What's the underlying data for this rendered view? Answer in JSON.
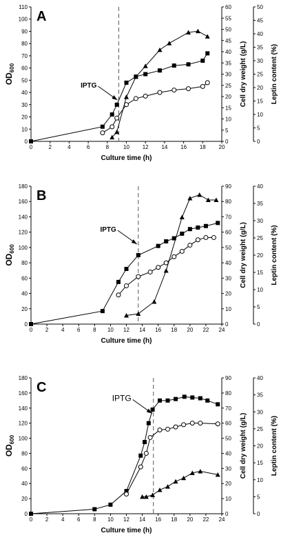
{
  "chart_data": [
    {
      "type": "line",
      "label": "A",
      "xlabel": "Culture time (h)",
      "ylabel": "OD",
      "ylabel_subscript": "600",
      "y2label": "Cell dry weight (g/L)",
      "y3label": "Leptin content (%)",
      "annotation": "IPTG",
      "iptg_x": 9.2,
      "xlim": [
        0,
        20
      ],
      "xticks": [
        0,
        2,
        4,
        6,
        8,
        10,
        12,
        14,
        16,
        18,
        20
      ],
      "ylim": [
        0,
        110
      ],
      "yticks": [
        0,
        10,
        20,
        30,
        40,
        50,
        60,
        70,
        80,
        90,
        100,
        110
      ],
      "y2lim": [
        0,
        60
      ],
      "y2ticks": [
        0,
        5,
        10,
        15,
        20,
        25,
        30,
        35,
        40,
        45,
        50,
        55,
        60
      ],
      "y3lim": [
        0,
        50
      ],
      "y3ticks": [
        0,
        5,
        10,
        15,
        20,
        25,
        30,
        35,
        40,
        45,
        50
      ],
      "series": [
        {
          "marker": "square",
          "color": "#000000",
          "axis": "y",
          "x": [
            0,
            7.5,
            8.5,
            9,
            10,
            11,
            12,
            13.5,
            15,
            16.5,
            18,
            18.5
          ],
          "values": [
            0,
            12,
            22,
            30,
            48,
            53,
            55,
            58,
            62,
            63,
            66,
            72
          ]
        },
        {
          "marker": "circle",
          "color": "#000000",
          "axis": "y2",
          "x": [
            7.5,
            8.5,
            9,
            10,
            11,
            12,
            13.5,
            15,
            16.5,
            18,
            18.5
          ],
          "values": [
            3.8,
            6.5,
            10.4,
            16.4,
            19.1,
            20.2,
            21.8,
            22.9,
            23.5,
            24.5,
            26.2
          ]
        },
        {
          "marker": "triangle",
          "color": "#000000",
          "axis": "y3",
          "x": [
            8.5,
            9,
            10,
            11,
            12,
            13.5,
            14.5,
            16.5,
            17.5,
            18.5
          ],
          "values": [
            1.5,
            3.5,
            16.5,
            24,
            28,
            34,
            36.5,
            40.5,
            41,
            39
          ]
        }
      ]
    },
    {
      "type": "line",
      "label": "B",
      "xlabel": "Culture time (h)",
      "ylabel": "OD",
      "ylabel_subscript": "600",
      "y2label": "Cell dry weight (g/L)",
      "y3label": "Leptin content (%)",
      "annotation": "IPTG",
      "iptg_x": 13.5,
      "xlim": [
        0,
        24
      ],
      "xticks": [
        0,
        2,
        4,
        6,
        8,
        10,
        12,
        14,
        16,
        18,
        20,
        22,
        24
      ],
      "ylim": [
        0,
        180
      ],
      "yticks": [
        0,
        20,
        40,
        60,
        80,
        100,
        120,
        140,
        160,
        180
      ],
      "y2lim": [
        0,
        90
      ],
      "y2ticks": [
        0,
        10,
        20,
        30,
        40,
        50,
        60,
        70,
        80,
        90
      ],
      "y3lim": [
        0,
        40
      ],
      "y3ticks": [
        0,
        5,
        10,
        15,
        20,
        25,
        30,
        35,
        40
      ],
      "series": [
        {
          "marker": "square",
          "color": "#000000",
          "axis": "y",
          "x": [
            0,
            9,
            11,
            12,
            13.5,
            16,
            17,
            18,
            19,
            20,
            21,
            22,
            23.5
          ],
          "values": [
            0,
            17,
            55,
            72,
            90,
            102,
            108,
            112,
            118,
            124,
            126,
            128,
            132
          ]
        },
        {
          "marker": "circle",
          "color": "#000000",
          "axis": "y2",
          "x": [
            11,
            12,
            13.5,
            15,
            16,
            17,
            18,
            19,
            20,
            21,
            22,
            23
          ],
          "values": [
            19,
            25,
            31,
            34,
            37,
            40,
            44,
            47.5,
            51.5,
            55,
            56.5,
            56.5
          ]
        },
        {
          "marker": "triangle",
          "color": "#000000",
          "axis": "y3",
          "x": [
            12,
            13.5,
            15.5,
            17,
            19,
            20,
            21.2,
            22.3,
            23.3
          ],
          "values": [
            2.5,
            3,
            6.5,
            15.5,
            31,
            36.5,
            37.5,
            36,
            36
          ]
        }
      ]
    },
    {
      "type": "line",
      "label": "C",
      "xlabel": "Culture time (h)",
      "ylabel": "OD",
      "ylabel_subscript": "600",
      "y2label": "Cell dry weight (g/L)",
      "y3label": "Leptin content (%)",
      "annotation": "IPTG",
      "iptg_x": 15.4,
      "xlim": [
        0,
        24
      ],
      "xticks": [
        0,
        2,
        4,
        6,
        8,
        10,
        12,
        14,
        16,
        18,
        20,
        22,
        24
      ],
      "ylim": [
        0,
        180
      ],
      "yticks": [
        0,
        20,
        40,
        60,
        80,
        100,
        120,
        140,
        160,
        180
      ],
      "y2lim": [
        0,
        90
      ],
      "y2ticks": [
        0,
        10,
        20,
        30,
        40,
        50,
        60,
        70,
        80,
        90
      ],
      "y3lim": [
        0,
        40
      ],
      "y3ticks": [
        0,
        5,
        10,
        15,
        20,
        25,
        30,
        35,
        40
      ],
      "series": [
        {
          "marker": "square",
          "color": "#000000",
          "axis": "y",
          "x": [
            0,
            8,
            10,
            12,
            13.8,
            14.3,
            14.8,
            15.3,
            16.2,
            17.2,
            18.2,
            19.3,
            20.3,
            21.3,
            22.2,
            23.5
          ],
          "values": [
            0,
            6,
            12,
            30,
            77,
            95,
            120,
            138,
            150,
            150,
            152,
            155,
            154,
            153,
            150,
            145
          ]
        },
        {
          "marker": "circle",
          "color": "#000000",
          "axis": "y2",
          "x": [
            12,
            13.8,
            14.5,
            15,
            16.2,
            17.2,
            18.2,
            19.2,
            20.3,
            21.3,
            23.5
          ],
          "values": [
            13,
            31,
            40,
            50.5,
            55.5,
            56,
            57.5,
            59,
            60,
            60,
            59.5
          ]
        },
        {
          "marker": "triangle",
          "color": "#000000",
          "axis": "y3",
          "x": [
            14,
            14.5,
            15.3,
            16.2,
            17.2,
            18.2,
            19.2,
            20.3,
            21.3,
            23.5
          ],
          "values": [
            5,
            5,
            5.5,
            7,
            8,
            9.5,
            10.5,
            12,
            12.5,
            11.5
          ]
        }
      ]
    }
  ]
}
